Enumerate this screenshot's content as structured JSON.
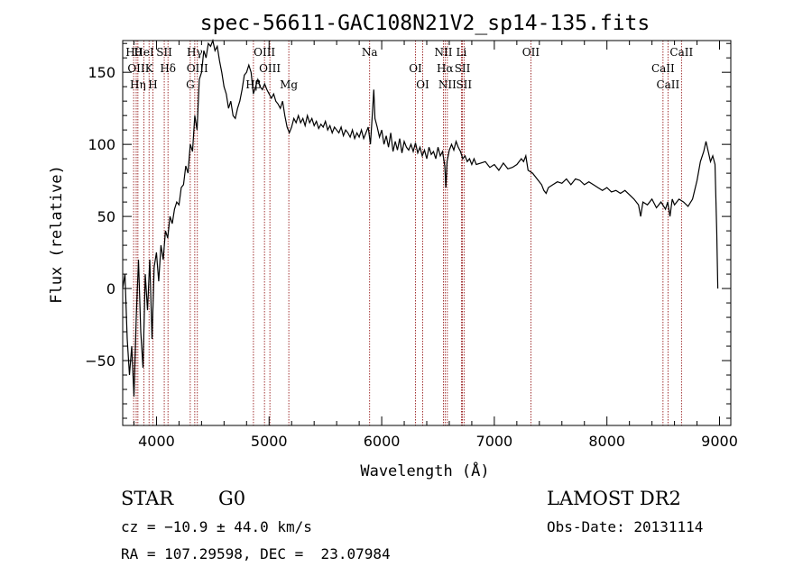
{
  "chart_data": {
    "type": "line",
    "title": "spec-56611-GAC108N21V2_sp14-135.fits",
    "xlabel": "Wavelength (Å)",
    "ylabel": "Flux (relative)",
    "xlim": [
      3700,
      9100
    ],
    "ylim": [
      -95,
      172
    ],
    "x_ticks": [
      4000,
      5000,
      6000,
      7000,
      8000,
      9000
    ],
    "y_ticks": [
      -50,
      0,
      50,
      100,
      150
    ],
    "grid": false,
    "series_color": "#000000",
    "line_marker_color": "#8b0000",
    "spectrum": [
      [
        3700,
        0
      ],
      [
        3720,
        10
      ],
      [
        3740,
        -35
      ],
      [
        3760,
        -60
      ],
      [
        3780,
        -40
      ],
      [
        3800,
        -75
      ],
      [
        3820,
        -20
      ],
      [
        3840,
        20
      ],
      [
        3860,
        -30
      ],
      [
        3880,
        -55
      ],
      [
        3900,
        10
      ],
      [
        3920,
        -15
      ],
      [
        3940,
        20
      ],
      [
        3960,
        -35
      ],
      [
        3980,
        15
      ],
      [
        4000,
        25
      ],
      [
        4020,
        5
      ],
      [
        4040,
        30
      ],
      [
        4060,
        20
      ],
      [
        4080,
        40
      ],
      [
        4100,
        35
      ],
      [
        4120,
        50
      ],
      [
        4140,
        45
      ],
      [
        4160,
        55
      ],
      [
        4180,
        60
      ],
      [
        4200,
        58
      ],
      [
        4220,
        70
      ],
      [
        4240,
        72
      ],
      [
        4260,
        85
      ],
      [
        4280,
        80
      ],
      [
        4300,
        100
      ],
      [
        4320,
        95
      ],
      [
        4340,
        120
      ],
      [
        4360,
        110
      ],
      [
        4380,
        145
      ],
      [
        4400,
        150
      ],
      [
        4420,
        165
      ],
      [
        4440,
        160
      ],
      [
        4460,
        170
      ],
      [
        4480,
        168
      ],
      [
        4500,
        172
      ],
      [
        4520,
        165
      ],
      [
        4540,
        168
      ],
      [
        4560,
        158
      ],
      [
        4580,
        150
      ],
      [
        4600,
        140
      ],
      [
        4620,
        135
      ],
      [
        4640,
        125
      ],
      [
        4660,
        130
      ],
      [
        4680,
        120
      ],
      [
        4700,
        118
      ],
      [
        4720,
        125
      ],
      [
        4740,
        130
      ],
      [
        4760,
        138
      ],
      [
        4780,
        148
      ],
      [
        4800,
        150
      ],
      [
        4820,
        155
      ],
      [
        4840,
        150
      ],
      [
        4860,
        135
      ],
      [
        4880,
        140
      ],
      [
        4900,
        145
      ],
      [
        4920,
        140
      ],
      [
        4940,
        138
      ],
      [
        4960,
        142
      ],
      [
        4980,
        138
      ],
      [
        5000,
        135
      ],
      [
        5020,
        132
      ],
      [
        5040,
        135
      ],
      [
        5060,
        130
      ],
      [
        5080,
        128
      ],
      [
        5100,
        125
      ],
      [
        5120,
        130
      ],
      [
        5140,
        120
      ],
      [
        5160,
        112
      ],
      [
        5180,
        108
      ],
      [
        5200,
        112
      ],
      [
        5220,
        118
      ],
      [
        5240,
        115
      ],
      [
        5260,
        120
      ],
      [
        5280,
        115
      ],
      [
        5300,
        118
      ],
      [
        5320,
        113
      ],
      [
        5340,
        120
      ],
      [
        5360,
        115
      ],
      [
        5380,
        118
      ],
      [
        5400,
        113
      ],
      [
        5420,
        116
      ],
      [
        5440,
        111
      ],
      [
        5460,
        114
      ],
      [
        5480,
        112
      ],
      [
        5500,
        116
      ],
      [
        5520,
        110
      ],
      [
        5540,
        113
      ],
      [
        5560,
        108
      ],
      [
        5580,
        112
      ],
      [
        5600,
        110
      ],
      [
        5620,
        108
      ],
      [
        5640,
        112
      ],
      [
        5660,
        106
      ],
      [
        5680,
        110
      ],
      [
        5700,
        108
      ],
      [
        5720,
        105
      ],
      [
        5740,
        110
      ],
      [
        5760,
        104
      ],
      [
        5780,
        108
      ],
      [
        5800,
        105
      ],
      [
        5820,
        110
      ],
      [
        5840,
        104
      ],
      [
        5860,
        108
      ],
      [
        5880,
        112
      ],
      [
        5900,
        100
      ],
      [
        5920,
        125
      ],
      [
        5930,
        138
      ],
      [
        5940,
        118
      ],
      [
        5960,
        112
      ],
      [
        5980,
        105
      ],
      [
        6000,
        110
      ],
      [
        6020,
        100
      ],
      [
        6040,
        106
      ],
      [
        6060,
        98
      ],
      [
        6080,
        108
      ],
      [
        6100,
        95
      ],
      [
        6120,
        102
      ],
      [
        6140,
        96
      ],
      [
        6160,
        104
      ],
      [
        6180,
        94
      ],
      [
        6200,
        102
      ],
      [
        6220,
        98
      ],
      [
        6240,
        96
      ],
      [
        6260,
        100
      ],
      [
        6280,
        95
      ],
      [
        6300,
        101
      ],
      [
        6320,
        94
      ],
      [
        6340,
        98
      ],
      [
        6360,
        92
      ],
      [
        6380,
        96
      ],
      [
        6400,
        90
      ],
      [
        6420,
        98
      ],
      [
        6440,
        93
      ],
      [
        6460,
        95
      ],
      [
        6480,
        90
      ],
      [
        6500,
        98
      ],
      [
        6520,
        92
      ],
      [
        6540,
        95
      ],
      [
        6560,
        85
      ],
      [
        6570,
        70
      ],
      [
        6580,
        88
      ],
      [
        6600,
        96
      ],
      [
        6620,
        100
      ],
      [
        6640,
        96
      ],
      [
        6660,
        102
      ],
      [
        6680,
        98
      ],
      [
        6700,
        95
      ],
      [
        6720,
        90
      ],
      [
        6740,
        92
      ],
      [
        6760,
        88
      ],
      [
        6780,
        90
      ],
      [
        6800,
        86
      ],
      [
        6820,
        90
      ],
      [
        6840,
        86
      ],
      [
        6880,
        87
      ],
      [
        6920,
        88
      ],
      [
        6960,
        84
      ],
      [
        7000,
        86
      ],
      [
        7040,
        82
      ],
      [
        7080,
        87
      ],
      [
        7120,
        83
      ],
      [
        7160,
        84
      ],
      [
        7200,
        86
      ],
      [
        7240,
        90
      ],
      [
        7260,
        88
      ],
      [
        7280,
        92
      ],
      [
        7300,
        82
      ],
      [
        7340,
        80
      ],
      [
        7380,
        76
      ],
      [
        7420,
        72
      ],
      [
        7440,
        68
      ],
      [
        7460,
        66
      ],
      [
        7480,
        70
      ],
      [
        7520,
        72
      ],
      [
        7560,
        74
      ],
      [
        7600,
        73
      ],
      [
        7640,
        76
      ],
      [
        7680,
        72
      ],
      [
        7720,
        76
      ],
      [
        7760,
        75
      ],
      [
        7800,
        72
      ],
      [
        7840,
        74
      ],
      [
        7880,
        72
      ],
      [
        7920,
        70
      ],
      [
        7960,
        68
      ],
      [
        8000,
        70
      ],
      [
        8040,
        67
      ],
      [
        8080,
        68
      ],
      [
        8120,
        66
      ],
      [
        8160,
        68
      ],
      [
        8200,
        65
      ],
      [
        8240,
        62
      ],
      [
        8280,
        58
      ],
      [
        8300,
        50
      ],
      [
        8320,
        60
      ],
      [
        8360,
        58
      ],
      [
        8400,
        62
      ],
      [
        8440,
        56
      ],
      [
        8480,
        60
      ],
      [
        8520,
        55
      ],
      [
        8540,
        60
      ],
      [
        8560,
        50
      ],
      [
        8580,
        62
      ],
      [
        8600,
        58
      ],
      [
        8640,
        62
      ],
      [
        8680,
        60
      ],
      [
        8720,
        57
      ],
      [
        8760,
        62
      ],
      [
        8800,
        75
      ],
      [
        8830,
        88
      ],
      [
        8860,
        95
      ],
      [
        8880,
        102
      ],
      [
        8900,
        95
      ],
      [
        8920,
        88
      ],
      [
        8940,
        92
      ],
      [
        8960,
        86
      ],
      [
        8975,
        40
      ],
      [
        8985,
        0
      ]
    ],
    "spectral_lines": [
      {
        "wave": 3797,
        "label": "Hθ"
      },
      {
        "wave": 3820,
        "label": "OII"
      },
      {
        "wave": 3835,
        "label": "Hη"
      },
      {
        "wave": 3889,
        "label": "HeI"
      },
      {
        "wave": 3934,
        "label": "K"
      },
      {
        "wave": 3968,
        "label": "H"
      },
      {
        "wave": 4069,
        "label": "SII"
      },
      {
        "wave": 4102,
        "label": "Hδ"
      },
      {
        "wave": 4300,
        "label": "G"
      },
      {
        "wave": 4340,
        "label": "Hγ"
      },
      {
        "wave": 4363,
        "label": "OIII"
      },
      {
        "wave": 4861,
        "label": "Hβ"
      },
      {
        "wave": 4959,
        "label": "OIII"
      },
      {
        "wave": 5007,
        "label": "OIII"
      },
      {
        "wave": 5175,
        "label": "Mg"
      },
      {
        "wave": 5893,
        "label": "Na"
      },
      {
        "wave": 6300,
        "label": "OI"
      },
      {
        "wave": 6364,
        "label": "OI"
      },
      {
        "wave": 6548,
        "label": "NII"
      },
      {
        "wave": 6563,
        "label": "Hα"
      },
      {
        "wave": 6583,
        "label": "NII"
      },
      {
        "wave": 6708,
        "label": "Li"
      },
      {
        "wave": 6717,
        "label": "SII"
      },
      {
        "wave": 6731,
        "label": "SII"
      },
      {
        "wave": 7325,
        "label": "OII"
      },
      {
        "wave": 8498,
        "label": "CaII"
      },
      {
        "wave": 8542,
        "label": "CaII"
      },
      {
        "wave": 8662,
        "label": "CaII"
      }
    ]
  },
  "info": {
    "class": "STAR",
    "subclass": "G0",
    "survey": "LAMOST DR2",
    "cz": "cz = −10.9 ± 44.0 km/s",
    "obs_date": "Obs-Date: 20131114",
    "radec": "RA = 107.29598, DEC =  23.07984"
  }
}
